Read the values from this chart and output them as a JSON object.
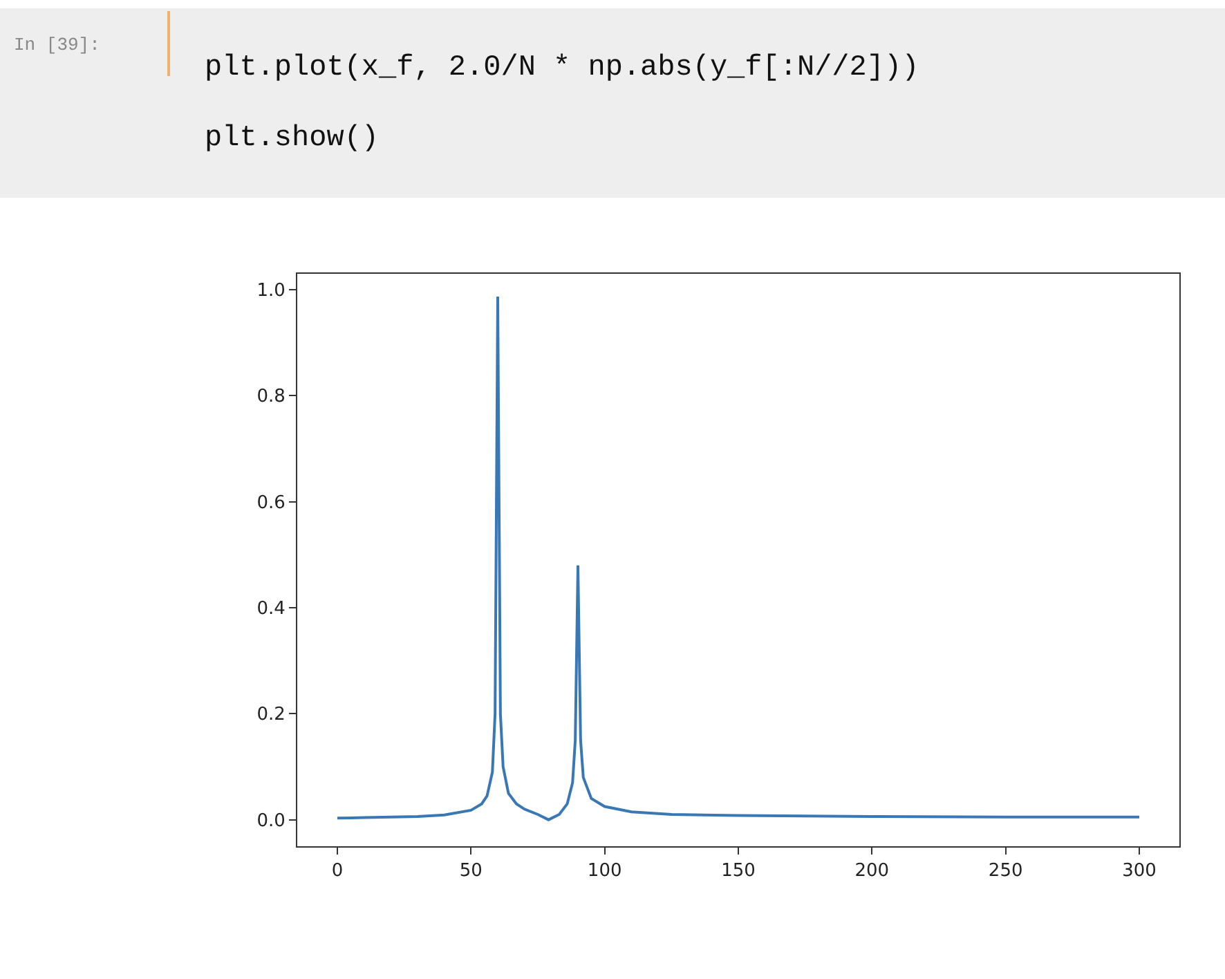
{
  "chart_data": {
    "type": "line",
    "annotations": [
      "In [39]:",
      "plt.plot(x_f, 2.0/N * np.abs(y_f[:N//2]))",
      "plt.show()"
    ],
    "series": [
      {
        "color": "#3a78b5",
        "x": [
          0,
          10,
          20,
          30,
          40,
          50,
          54,
          56,
          58,
          59,
          60,
          61,
          62,
          64,
          67,
          70,
          75,
          79,
          83,
          86,
          88,
          89,
          90,
          91,
          92,
          95,
          100,
          110,
          125,
          150,
          200,
          250,
          300
        ],
        "values": [
          0.003,
          0.004,
          0.005,
          0.006,
          0.009,
          0.018,
          0.03,
          0.045,
          0.09,
          0.2,
          0.987,
          0.2,
          0.1,
          0.05,
          0.03,
          0.02,
          0.01,
          0.0,
          0.01,
          0.03,
          0.07,
          0.15,
          0.48,
          0.15,
          0.08,
          0.04,
          0.025,
          0.015,
          0.01,
          0.008,
          0.006,
          0.005,
          0.005
        ]
      }
    ],
    "xlim": [
      -15,
      315
    ],
    "xticks": [
      0,
      50,
      100,
      150,
      200,
      250,
      300
    ],
    "ylim": [
      -0.05,
      1.03
    ],
    "yticks": [
      {
        "value": 0,
        "label": "0.0"
      },
      {
        "value": 0.2,
        "label": "0.2"
      },
      {
        "value": 0.4,
        "label": "0.4"
      },
      {
        "value": 0.6,
        "label": "0.6"
      },
      {
        "value": 0.8,
        "label": "0.8"
      },
      {
        "value": 1.0,
        "label": "1.0"
      }
    ],
    "grid": false,
    "marker": "none",
    "line_style": "solid"
  }
}
